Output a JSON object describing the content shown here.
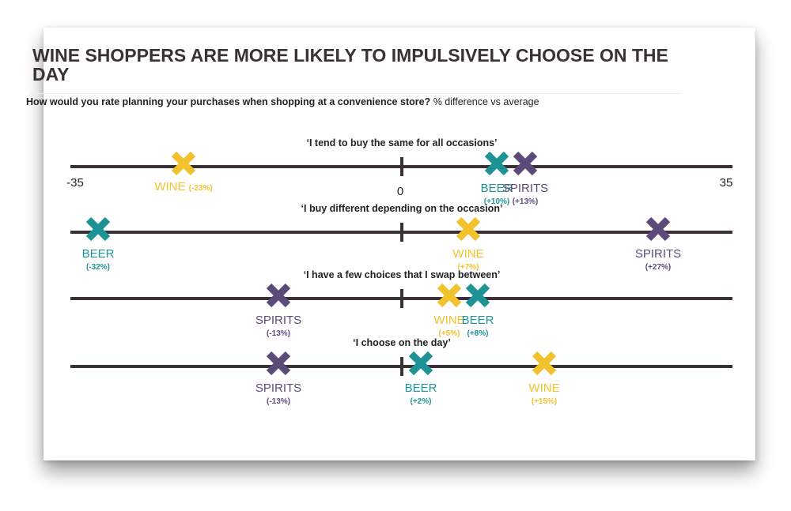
{
  "title": "WINE SHOPPERS ARE MORE LIKELY TO IMPULSIVELY CHOOSE ON THE DAY",
  "question": {
    "bold": "How would you rate planning your purchases when shopping at a convenience store?",
    "normal": "% difference vs average"
  },
  "colors": {
    "wine": "#f2c12e",
    "beer": "#1e9396",
    "spirits": "#5c4a7a",
    "axis": "#3a3035"
  },
  "chart_data": {
    "type": "scatter",
    "xlim": [
      -35,
      35
    ],
    "axis_labels": {
      "min": "-35",
      "zero": "0",
      "max": "35"
    },
    "rows": [
      {
        "statement": "‘I tend to buy the same for all occasions’",
        "points": [
          {
            "category": "WINE",
            "value": -23,
            "label": "(-23%)"
          },
          {
            "category": "BEER",
            "value": 10,
            "label": "(+10%)"
          },
          {
            "category": "SPIRITS",
            "value": 13,
            "label": "(+13%)"
          }
        ]
      },
      {
        "statement": "‘I buy different depending on the occasion’",
        "points": [
          {
            "category": "BEER",
            "value": -32,
            "label": "(-32%)"
          },
          {
            "category": "WINE",
            "value": 7,
            "label": "(+7%)"
          },
          {
            "category": "SPIRITS",
            "value": 27,
            "label": "(+27%)"
          }
        ]
      },
      {
        "statement": "‘I have a few choices that I swap between’",
        "points": [
          {
            "category": "SPIRITS",
            "value": -13,
            "label": "(-13%)"
          },
          {
            "category": "WINE",
            "value": 5,
            "label": "(+5%)"
          },
          {
            "category": "BEER",
            "value": 8,
            "label": "(+8%)"
          }
        ]
      },
      {
        "statement": "‘I choose on the day’",
        "points": [
          {
            "category": "SPIRITS",
            "value": -13,
            "label": "(-13%)"
          },
          {
            "category": "BEER",
            "value": 2,
            "label": "(+2%)"
          },
          {
            "category": "WINE",
            "value": 15,
            "label": "(+15%)"
          }
        ]
      }
    ]
  }
}
